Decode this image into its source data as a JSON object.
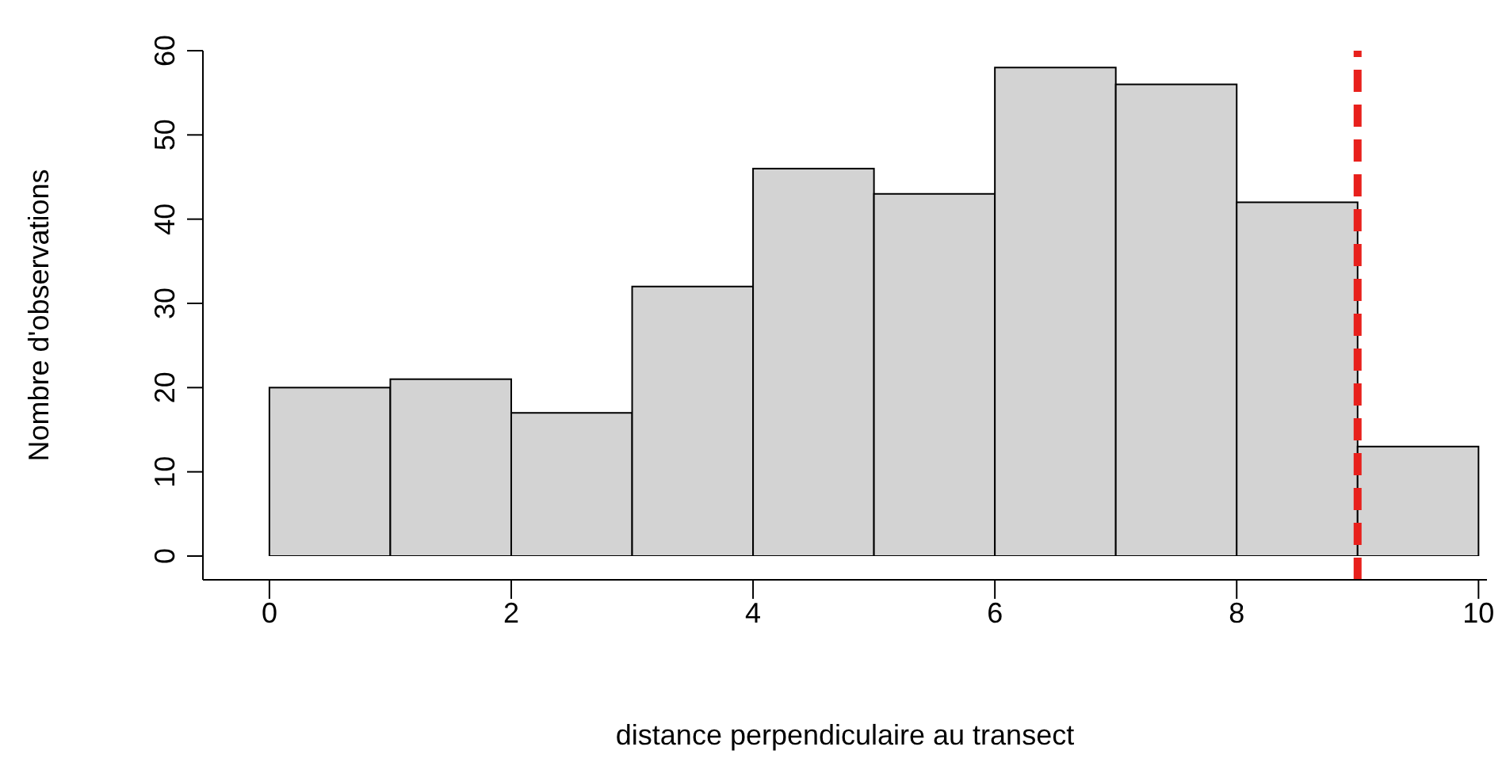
{
  "chart_data": {
    "type": "histogram",
    "xlabel": "distance perpendiculaire au transect",
    "ylabel": "Nombre d'observations",
    "bins": [
      0,
      1,
      2,
      3,
      4,
      5,
      6,
      7,
      8,
      9,
      10
    ],
    "values": [
      20,
      21,
      17,
      32,
      46,
      43,
      58,
      56,
      42,
      13
    ],
    "color": "#d3d3d3",
    "xlim": [
      -0.55,
      10.07
    ],
    "xticks": [
      0,
      2,
      4,
      6,
      8,
      10
    ],
    "ylim": [
      0,
      60
    ],
    "yticks": [
      0,
      10,
      20,
      30,
      40,
      50,
      60
    ],
    "grid": false,
    "ref_lines": [
      {
        "axis": "x",
        "value": 9,
        "color": "#e8201c",
        "line_style": "dashed"
      }
    ]
  }
}
